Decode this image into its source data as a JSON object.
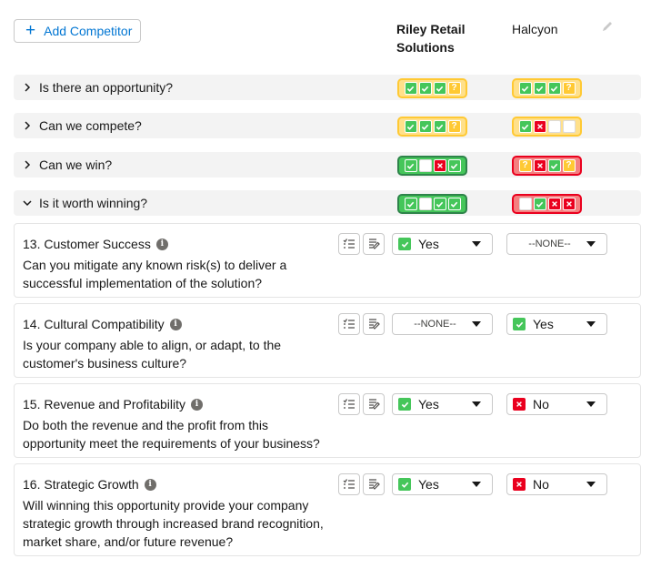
{
  "toolbar": {
    "add_label": "Add Competitor"
  },
  "competitors": [
    "Riley Retail Solutions",
    "Halcyon"
  ],
  "colors": {
    "green": "#45c65a",
    "red": "#ea001e",
    "yellow": "#ffc933",
    "accent": "#0176d3"
  },
  "sections": [
    {
      "title": "Is there an opportunity?",
      "expanded": false,
      "tallies": [
        {
          "color": "yellow",
          "boxes": [
            "ok",
            "ok",
            "ok",
            "q"
          ]
        },
        {
          "color": "yellow",
          "boxes": [
            "ok",
            "ok",
            "ok",
            "q"
          ]
        }
      ]
    },
    {
      "title": "Can we compete?",
      "expanded": false,
      "tallies": [
        {
          "color": "yellow",
          "boxes": [
            "ok",
            "ok",
            "ok",
            "q"
          ]
        },
        {
          "color": "yellow",
          "boxes": [
            "ok",
            "no",
            "empty",
            "empty"
          ]
        }
      ]
    },
    {
      "title": "Can we win?",
      "expanded": false,
      "tallies": [
        {
          "color": "green",
          "boxes": [
            "ok",
            "empty",
            "no",
            "ok"
          ]
        },
        {
          "color": "red",
          "boxes": [
            "q",
            "no",
            "ok",
            "q"
          ]
        }
      ]
    },
    {
      "title": "Is it worth winning?",
      "expanded": true,
      "tallies": [
        {
          "color": "green",
          "boxes": [
            "ok",
            "empty",
            "ok",
            "ok"
          ]
        },
        {
          "color": "red",
          "boxes": [
            "empty",
            "ok",
            "no",
            "no"
          ]
        }
      ]
    }
  ],
  "questions": [
    {
      "title": "13. Customer Success",
      "description": "Can you mitigate any known risk(s) to deliver a successful implementation of the solution?",
      "answers": [
        {
          "value": "Yes",
          "status": "ok"
        },
        {
          "value": "--NONE--",
          "status": "none"
        }
      ]
    },
    {
      "title": "14. Cultural Compatibility",
      "description": "Is your company able to align, or adapt, to the customer's business culture?",
      "answers": [
        {
          "value": "--NONE--",
          "status": "none"
        },
        {
          "value": "Yes",
          "status": "ok"
        }
      ]
    },
    {
      "title": "15. Revenue and Profitability",
      "description": "Do both the revenue and the profit from this opportunity meet the requirements of your business?",
      "answers": [
        {
          "value": "Yes",
          "status": "ok"
        },
        {
          "value": "No",
          "status": "no"
        }
      ]
    },
    {
      "title": "16. Strategic Growth",
      "description": "Will winning this opportunity provide your company strategic growth through increased brand recognition, market share, and/or future revenue?",
      "answers": [
        {
          "value": "Yes",
          "status": "ok"
        },
        {
          "value": "No",
          "status": "no"
        }
      ]
    }
  ]
}
